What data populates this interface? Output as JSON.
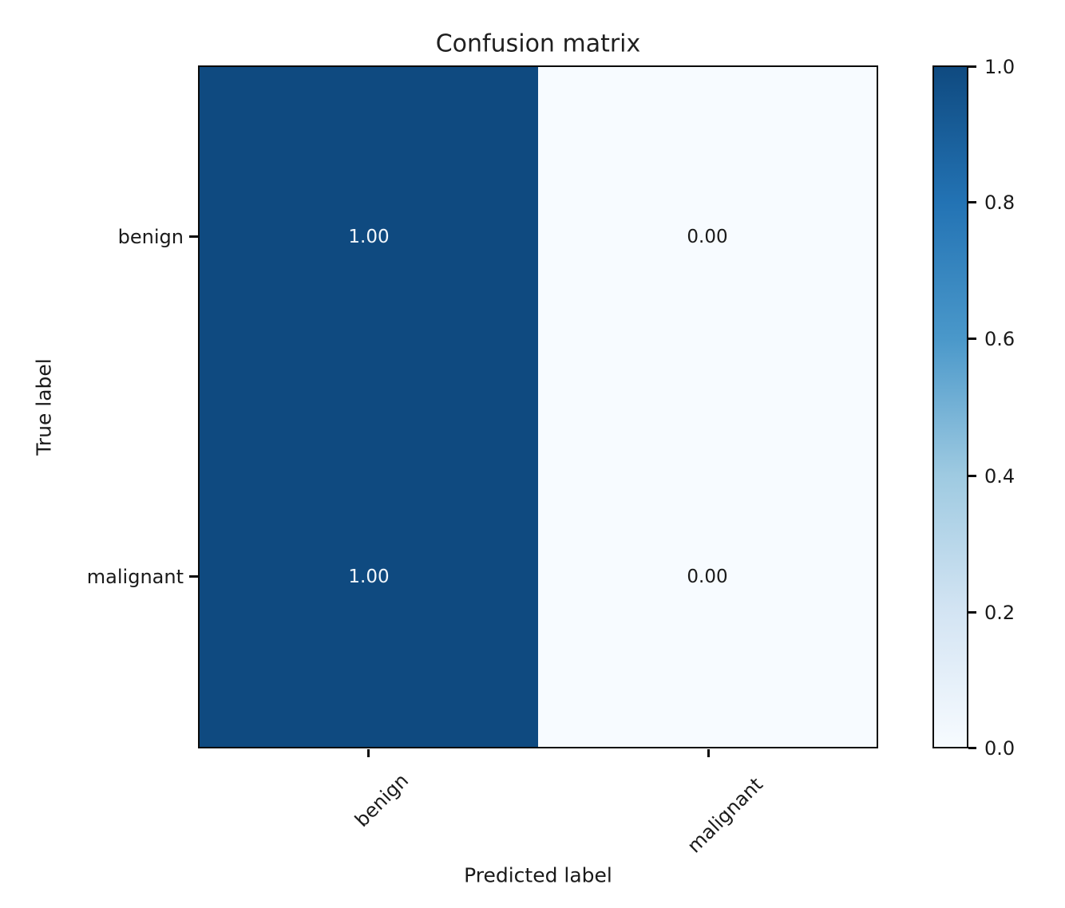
{
  "chart_data": {
    "type": "heatmap",
    "title": "Confusion matrix",
    "xlabel": "Predicted label",
    "ylabel": "True label",
    "x_categories": [
      "benign",
      "malignant"
    ],
    "y_categories": [
      "benign",
      "malignant"
    ],
    "matrix": [
      [
        1.0,
        0.0
      ],
      [
        1.0,
        0.0
      ]
    ],
    "cell_labels": [
      [
        "1.00",
        "0.00"
      ],
      [
        "1.00",
        "0.00"
      ]
    ],
    "colorbar": {
      "min": 0.0,
      "max": 1.0,
      "ticks": [
        "1.0",
        "0.8",
        "0.6",
        "0.4",
        "0.2",
        "0.0"
      ],
      "colormap": "Blues",
      "gradient_top_to_bottom": [
        "#0f4a80",
        "#2373b4",
        "#4a98ca",
        "#9ecae1",
        "#d3e4f3",
        "#f7fbff"
      ]
    },
    "colors": {
      "cell_high": "#0f4a80",
      "cell_low": "#f7fbff",
      "text_on_high": "#f2f7fc",
      "text_on_low": "#1a1a1a"
    },
    "layout": {
      "grid": false,
      "legend": false,
      "x_tick_rotation_deg": 45
    }
  }
}
